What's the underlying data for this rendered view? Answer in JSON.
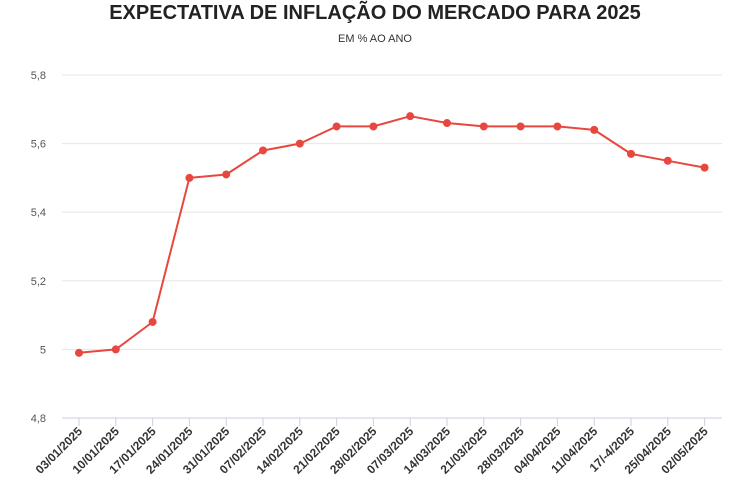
{
  "chart_data": {
    "type": "line",
    "title": "EXPECTATIVA DE INFLAÇÃO DO MERCADO PARA 2025",
    "subtitle": "EM % AO ANO",
    "xlabel": "",
    "ylabel": "",
    "categories": [
      "03/01/2025",
      "10/01/2025",
      "17/01/2025",
      "24/01/2025",
      "31/01/2025",
      "07/02/2025",
      "14/02/2025",
      "21/02/2025",
      "28/02/2025",
      "07/03/2025",
      "14/03/2025",
      "21/03/2025",
      "28/03/2025",
      "04/04/2025",
      "11/04/2025",
      "17/-4/2025",
      "25/04/2025",
      "02/05/2025"
    ],
    "series": [
      {
        "values": [
          4.99,
          5.0,
          5.08,
          5.5,
          5.51,
          5.58,
          5.6,
          5.65,
          5.65,
          5.68,
          5.66,
          5.65,
          5.65,
          5.65,
          5.64,
          5.57,
          5.55,
          5.53
        ]
      }
    ],
    "ylim": [
      4.8,
      5.8
    ],
    "yticks": [
      "4,8",
      "5",
      "5,2",
      "5,4",
      "5,6",
      "5,8"
    ],
    "grid": true,
    "legend": "none",
    "colors": {
      "line": "#e8473f",
      "grid": "#e6e6e6",
      "axis": "#c8d1dc"
    }
  }
}
